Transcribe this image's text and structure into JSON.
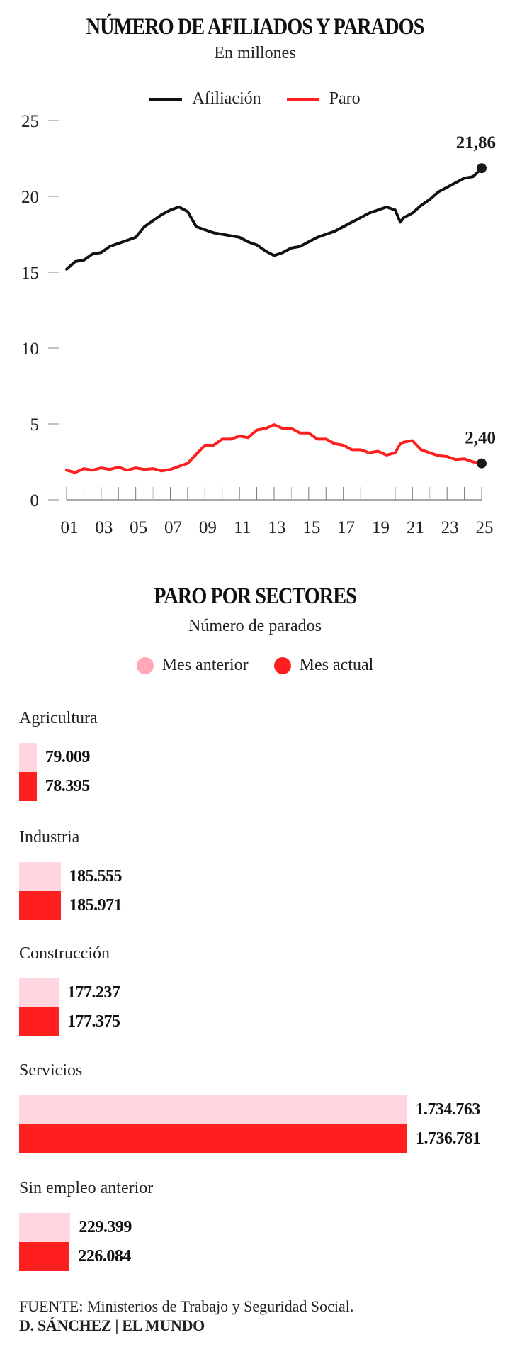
{
  "chart_data": [
    {
      "type": "line",
      "title": "NÚMERO DE AFILIADOS Y PARADOS",
      "subtitle": "En millones",
      "xlabel": "",
      "ylabel": "",
      "xlim": [
        2001,
        2025
      ],
      "ylim": [
        0,
        25
      ],
      "y_ticks": [
        "0",
        "5",
        "10",
        "15",
        "20",
        "25"
      ],
      "y_tick_values": [
        0,
        5,
        10,
        15,
        20,
        25
      ],
      "x_ticks": [
        "01",
        "03",
        "05",
        "07",
        "09",
        "11",
        "13",
        "15",
        "17",
        "19",
        "21",
        "23",
        "25"
      ],
      "x_tick_values": [
        2001,
        2003,
        2005,
        2007,
        2009,
        2011,
        2013,
        2015,
        2017,
        2019,
        2021,
        2023,
        2025
      ],
      "grid": false,
      "legend": "top-center",
      "series": [
        {
          "name": "Afiliación",
          "color": "#111111",
          "end_label": "21,86",
          "x": [
            2001.0,
            2001.5,
            2002.0,
            2002.5,
            2003.0,
            2003.5,
            2004.0,
            2004.5,
            2005.0,
            2005.5,
            2006.0,
            2006.5,
            2007.0,
            2007.5,
            2008.0,
            2008.5,
            2009.0,
            2009.5,
            2010.0,
            2010.5,
            2011.0,
            2011.5,
            2012.0,
            2012.5,
            2013.0,
            2013.5,
            2014.0,
            2014.5,
            2015.0,
            2015.5,
            2016.0,
            2016.5,
            2017.0,
            2017.5,
            2018.0,
            2018.5,
            2019.0,
            2019.5,
            2020.0,
            2020.3,
            2020.5,
            2021.0,
            2021.5,
            2022.0,
            2022.5,
            2023.0,
            2023.5,
            2024.0,
            2024.5,
            2025.0
          ],
          "values": [
            15.2,
            15.7,
            15.8,
            16.2,
            16.3,
            16.7,
            16.9,
            17.1,
            17.3,
            18.0,
            18.4,
            18.8,
            19.1,
            19.3,
            19.0,
            18.0,
            17.8,
            17.6,
            17.5,
            17.4,
            17.3,
            17.0,
            16.8,
            16.4,
            16.1,
            16.3,
            16.6,
            16.7,
            17.0,
            17.3,
            17.5,
            17.7,
            18.0,
            18.3,
            18.6,
            18.9,
            19.1,
            19.3,
            19.1,
            18.3,
            18.6,
            18.9,
            19.4,
            19.8,
            20.3,
            20.6,
            20.9,
            21.2,
            21.3,
            21.86
          ]
        },
        {
          "name": "Paro",
          "color": "#ff1f1f",
          "end_label": "2,40",
          "x": [
            2001.0,
            2001.5,
            2002.0,
            2002.5,
            2003.0,
            2003.5,
            2004.0,
            2004.5,
            2005.0,
            2005.5,
            2006.0,
            2006.5,
            2007.0,
            2007.5,
            2008.0,
            2008.5,
            2009.0,
            2009.5,
            2010.0,
            2010.5,
            2011.0,
            2011.5,
            2012.0,
            2012.5,
            2013.0,
            2013.5,
            2014.0,
            2014.5,
            2015.0,
            2015.5,
            2016.0,
            2016.5,
            2017.0,
            2017.5,
            2018.0,
            2018.5,
            2019.0,
            2019.5,
            2020.0,
            2020.3,
            2020.5,
            2021.0,
            2021.5,
            2022.0,
            2022.5,
            2023.0,
            2023.5,
            2024.0,
            2024.5,
            2025.0
          ],
          "values": [
            1.95,
            1.8,
            2.05,
            1.95,
            2.1,
            2.0,
            2.15,
            1.95,
            2.1,
            2.0,
            2.05,
            1.9,
            2.0,
            2.2,
            2.4,
            3.0,
            3.6,
            3.6,
            4.0,
            4.0,
            4.2,
            4.1,
            4.6,
            4.7,
            4.95,
            4.7,
            4.7,
            4.4,
            4.4,
            4.0,
            4.0,
            3.7,
            3.6,
            3.3,
            3.3,
            3.1,
            3.2,
            2.95,
            3.1,
            3.7,
            3.8,
            3.9,
            3.3,
            3.1,
            2.9,
            2.85,
            2.65,
            2.7,
            2.5,
            2.4
          ]
        }
      ]
    },
    {
      "type": "bar",
      "orientation": "horizontal",
      "title": "PARO POR SECTORES",
      "subtitle": "Número de parados",
      "legend": "top-center",
      "categories": [
        "Agricultura",
        "Industria",
        "Construcción",
        "Servicios",
        "Sin empleo anterior"
      ],
      "series": [
        {
          "name": "Mes anterior",
          "color": "#ffd5e0",
          "legend_color": "#ffa8b8",
          "values": [
            79009,
            185555,
            177237,
            1734763,
            229399
          ],
          "labels": [
            "79.009",
            "185.555",
            "177.237",
            "1.734.763",
            "229.399"
          ]
        },
        {
          "name": "Mes actual",
          "color": "#ff1f1f",
          "legend_color": "#ff1f1f",
          "values": [
            78395,
            185971,
            177375,
            1736781,
            226084
          ],
          "labels": [
            "78.395",
            "185.971",
            "177.375",
            "1.736.781",
            "226.084"
          ]
        }
      ]
    }
  ],
  "footer": {
    "source_label": "FUENTE:",
    "source_text": "Ministerios de Trabajo y Seguridad Social.",
    "credit": "D. SÁNCHEZ | EL MUNDO"
  }
}
